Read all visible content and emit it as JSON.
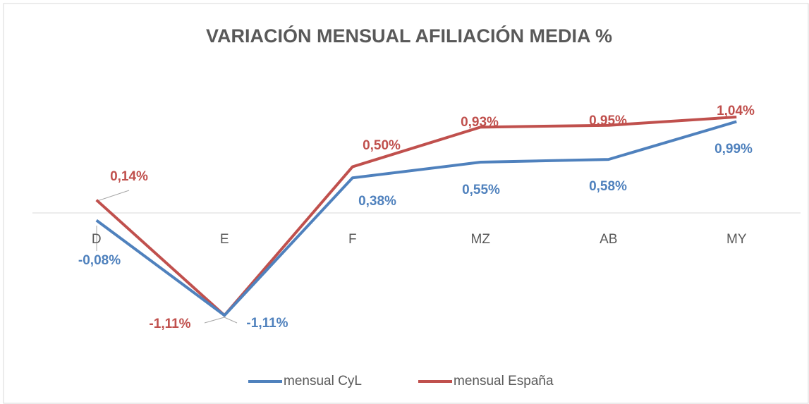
{
  "chart_data": {
    "type": "line",
    "title": "VARIACIÓN MENSUAL AFILIACIÓN MEDIA %",
    "categories": [
      "D",
      "E",
      "F",
      "MZ",
      "AB",
      "MY"
    ],
    "series": [
      {
        "name": "mensual CyL",
        "color": "#4f81bd",
        "values": [
          -0.08,
          -1.11,
          0.38,
          0.55,
          0.58,
          0.99
        ],
        "value_labels": [
          "-0,08%",
          "-1,11%",
          "0,38%",
          "0,55%",
          "0,58%",
          "0,99%"
        ]
      },
      {
        "name": "mensual España",
        "color": "#c0504d",
        "values": [
          0.14,
          -1.11,
          0.5,
          0.93,
          0.95,
          1.04
        ],
        "value_labels": [
          "0,14%",
          "-1,11%",
          "0,50%",
          "0,93%",
          "0,95%",
          "1,04%"
        ]
      }
    ],
    "ylim": [
      -1.2,
      1.2
    ],
    "legend": "bottom"
  }
}
